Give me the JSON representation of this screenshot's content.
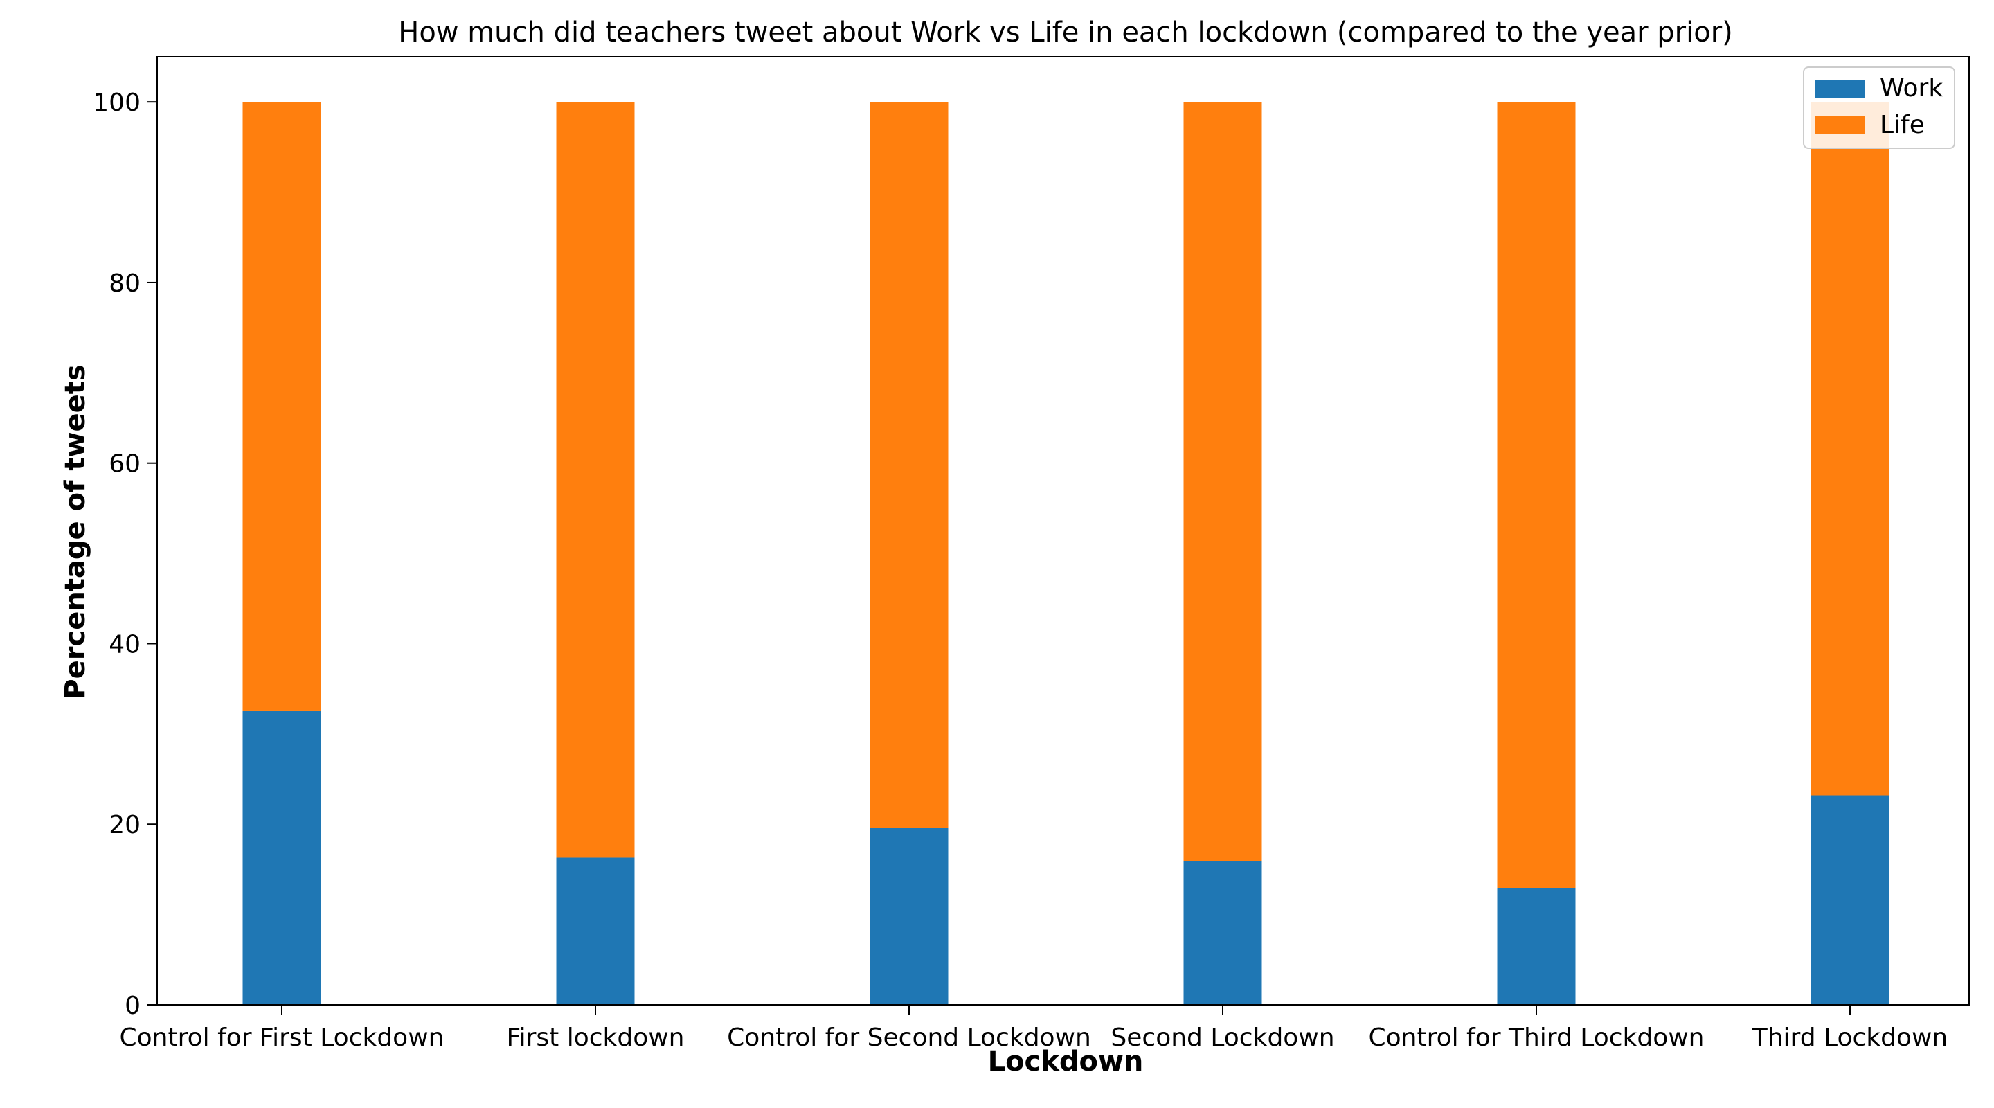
{
  "chart_data": {
    "type": "bar",
    "stacked": true,
    "title": "How much did teachers tweet about Work vs Life in each lockdown (compared to the year prior)",
    "xlabel": "Lockdown",
    "ylabel": "Percentage of tweets",
    "categories": [
      "Control for First Lockdown",
      "First lockdown",
      "Control for Second Lockdown",
      "Second Lockdown",
      "Control for Third Lockdown",
      "Third Lockdown"
    ],
    "series": [
      {
        "name": "Work",
        "color": "#1f77b4",
        "values": [
          32.6,
          16.3,
          19.6,
          15.9,
          12.9,
          23.2
        ]
      },
      {
        "name": "Life",
        "color": "#ff7f0e",
        "values": [
          67.4,
          83.7,
          80.4,
          84.1,
          87.1,
          76.8
        ]
      }
    ],
    "ylim": [
      0,
      105
    ],
    "yticks": [
      0,
      20,
      40,
      60,
      80,
      100
    ],
    "grid": false,
    "legend_position": "top-right"
  }
}
